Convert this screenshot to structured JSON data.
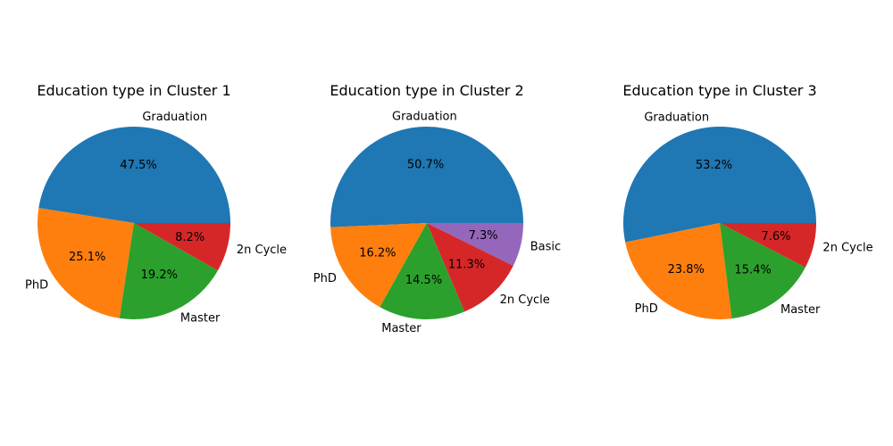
{
  "palette": {
    "Graduation": "#1f77b4",
    "PhD": "#ff7f0e",
    "Master": "#2ca02c",
    "2n Cycle": "#d62728",
    "Basic": "#9467bd"
  },
  "chart_data": [
    {
      "type": "pie",
      "title": "Education type in Cluster 1",
      "labels": [
        "Graduation",
        "PhD",
        "Master",
        "2n Cycle"
      ],
      "values": [
        47.5,
        25.1,
        19.2,
        8.2
      ],
      "value_labels": [
        "47.5%",
        "25.1%",
        "19.2%",
        "8.2%"
      ],
      "start_angle": 0,
      "direction": "counterclockwise"
    },
    {
      "type": "pie",
      "title": "Education type in Cluster 2",
      "labels": [
        "Graduation",
        "PhD",
        "Master",
        "2n Cycle",
        "Basic"
      ],
      "values": [
        50.7,
        16.2,
        14.5,
        11.3,
        7.3
      ],
      "value_labels": [
        "50.7%",
        "16.2%",
        "14.5%",
        "11.3%",
        "7.3%"
      ],
      "start_angle": 0,
      "direction": "counterclockwise"
    },
    {
      "type": "pie",
      "title": "Education type in Cluster 3",
      "labels": [
        "Graduation",
        "PhD",
        "Master",
        "2n Cycle"
      ],
      "values": [
        53.2,
        23.8,
        15.4,
        7.6
      ],
      "value_labels": [
        "53.2%",
        "23.8%",
        "15.4%",
        "7.6%"
      ],
      "start_angle": 0,
      "direction": "counterclockwise"
    }
  ]
}
